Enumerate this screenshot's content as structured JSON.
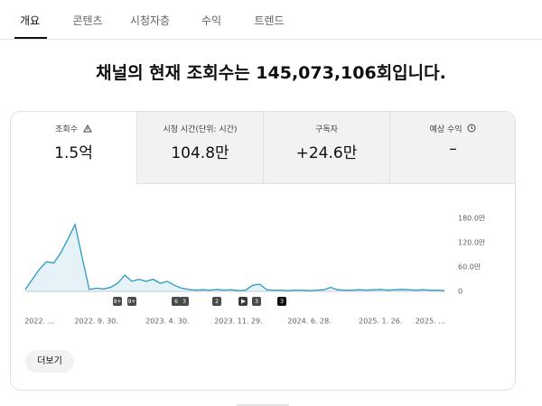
{
  "tabs": [
    "개요",
    "콘텐츠",
    "시청자층",
    "수익",
    "트렌드"
  ],
  "headline": "채널의 현재 조회수는 145,073,106회입니다.",
  "metrics": [
    {
      "label": "조회수",
      "value": "1.5억"
    },
    {
      "label": "시청 시간(단위: 시간)",
      "value": "104.8만"
    },
    {
      "label": "구독자",
      "value": "+24.6만"
    },
    {
      "label": "예상 수익",
      "value": "–"
    }
  ],
  "chart_data": {
    "type": "area",
    "categories": [
      null,
      null,
      "2022. ...",
      null,
      null,
      null,
      null,
      null,
      null,
      null,
      "2022. 9. 30.",
      null,
      null,
      null,
      null,
      null,
      null,
      null,
      null,
      null,
      "2023. 4. 30.",
      null,
      null,
      null,
      null,
      null,
      null,
      null,
      null,
      null,
      "2023. 11. 29.",
      null,
      null,
      null,
      null,
      null,
      null,
      null,
      null,
      null,
      "2024. 6. 28.",
      null,
      null,
      null,
      null,
      null,
      null,
      null,
      null,
      null,
      "2025. 1. 26.",
      null,
      null,
      null,
      null,
      null,
      null,
      "2025. ...",
      null,
      null
    ],
    "values": [
      5,
      30,
      55,
      73,
      70,
      95,
      129,
      165,
      84,
      5,
      8,
      6,
      10,
      20,
      40,
      25,
      30,
      25,
      30,
      20,
      25,
      15,
      8,
      5,
      3,
      4,
      3,
      5,
      3,
      4,
      2,
      3,
      15,
      18,
      4,
      3,
      3,
      2,
      3,
      3,
      2,
      3,
      4,
      10,
      4,
      3,
      3,
      4,
      3,
      4,
      5,
      3,
      4,
      5,
      4,
      3,
      4,
      3,
      3,
      2
    ],
    "color": "#2b9ac4",
    "ylim": [
      0,
      180
    ],
    "yticks": [
      0,
      {
        "value": 60,
        "label": "60.0만"
      },
      {
        "value": 120,
        "label": "120.0만"
      },
      {
        "value": 180,
        "label": "180.0만"
      }
    ],
    "grid": false,
    "markers": [
      "9+",
      "9+",
      "6",
      "3",
      "2",
      "3",
      "3"
    ]
  },
  "button": "더보기"
}
